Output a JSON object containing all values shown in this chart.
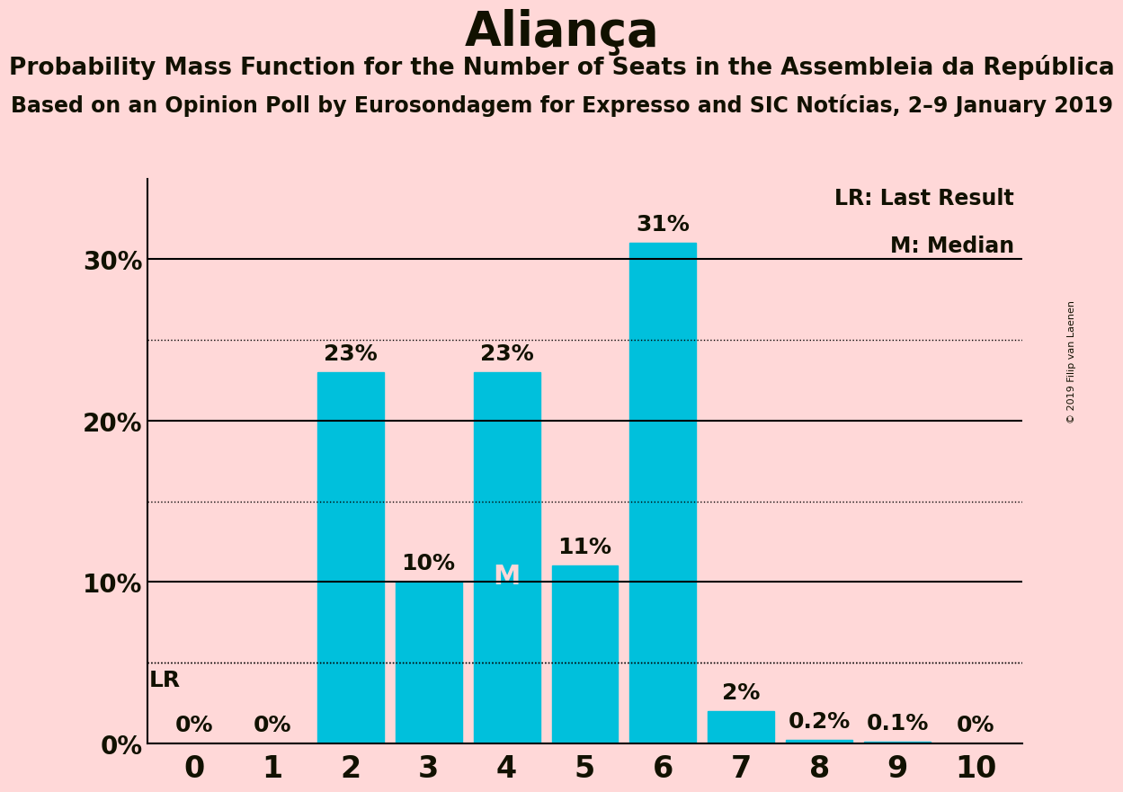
{
  "title": "Aliança",
  "subtitle": "Probability Mass Function for the Number of Seats in the Assembleia da República",
  "subsubtitle": "Based on an Opinion Poll by Eurosondagem for Expresso and SIC Notícias, 2–9 January 2019",
  "copyright": "© 2019 Filip van Laenen",
  "categories": [
    0,
    1,
    2,
    3,
    4,
    5,
    6,
    7,
    8,
    9,
    10
  ],
  "values": [
    0.0,
    0.0,
    23.0,
    10.0,
    23.0,
    11.0,
    31.0,
    2.0,
    0.2,
    0.1,
    0.0
  ],
  "labels": [
    "0%",
    "0%",
    "23%",
    "10%",
    "23%",
    "11%",
    "31%",
    "2%",
    "0.2%",
    "0.1%",
    "0%"
  ],
  "bar_color": "#00C0DC",
  "background_color": "#FFD8D8",
  "text_color": "#111100",
  "yticks": [
    0,
    10,
    20,
    30
  ],
  "ylim": [
    0,
    35
  ],
  "dotted_lines": [
    5,
    15,
    25
  ],
  "solid_lines": [
    0,
    10,
    20,
    30
  ],
  "lr_value": 5.0,
  "median_bar": 4,
  "legend_lr": "LR: Last Result",
  "legend_m": "M: Median",
  "title_fontsize": 38,
  "subtitle_fontsize": 19,
  "subsubtitle_fontsize": 17,
  "label_fontsize": 18,
  "ytick_fontsize": 20,
  "xtick_fontsize": 24,
  "legend_fontsize": 17
}
